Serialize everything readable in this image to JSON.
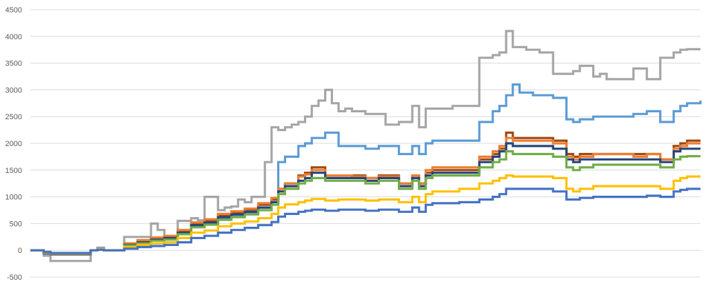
{
  "chart_data": {
    "type": "line",
    "title": "",
    "xlabel": "",
    "ylabel": "",
    "ylim": [
      -500,
      4500
    ],
    "yticks": [
      -500,
      0,
      500,
      1000,
      1500,
      2000,
      2500,
      3000,
      3500,
      4000,
      4500
    ],
    "ytick_labels": [
      "-500",
      "0",
      "500",
      "1000",
      "1500",
      "2000",
      "2500",
      "3000",
      "3500",
      "4000",
      "4500"
    ],
    "xlim": [
      0,
      100
    ],
    "grid": true,
    "legend": "none",
    "series": [
      {
        "color": "#a5a5a5",
        "x": [
          0,
          2,
          3,
          6,
          9,
          10,
          11,
          12,
          13,
          14,
          15,
          18,
          19,
          20,
          21,
          22,
          23,
          24,
          25,
          26,
          28,
          29,
          30,
          31,
          32,
          33,
          34,
          35,
          36,
          37,
          38,
          39,
          40,
          41,
          42,
          43,
          44,
          45,
          46,
          47,
          48,
          49,
          50,
          51,
          52,
          53,
          55,
          57,
          58,
          59,
          60,
          61,
          62,
          63,
          64,
          67,
          69,
          70,
          71,
          72,
          73,
          74,
          75,
          76,
          78,
          80,
          81,
          82,
          84,
          85,
          86,
          88,
          90,
          92,
          94,
          96,
          97,
          98,
          100
        ],
        "y": [
          0,
          -100,
          -200,
          -200,
          0,
          50,
          0,
          0,
          0,
          250,
          250,
          500,
          380,
          250,
          250,
          550,
          550,
          600,
          560,
          1000,
          750,
          800,
          820,
          950,
          900,
          1000,
          1000,
          1650,
          2300,
          2250,
          2300,
          2350,
          2400,
          2500,
          2700,
          2800,
          3000,
          2750,
          2600,
          2650,
          2600,
          2600,
          2550,
          2550,
          2550,
          2350,
          2400,
          2700,
          2300,
          2650,
          2650,
          2650,
          2650,
          2700,
          2700,
          3600,
          3650,
          3700,
          4100,
          3800,
          3800,
          3750,
          3750,
          3700,
          3300,
          3300,
          3350,
          3450,
          3250,
          3300,
          3200,
          3200,
          3400,
          3200,
          3600,
          3700,
          3750,
          3760,
          3760
        ]
      },
      {
        "color": "#5b9bd5",
        "x": [
          0,
          2,
          3,
          6,
          9,
          10,
          11,
          12,
          13,
          14,
          16,
          18,
          20,
          22,
          24,
          26,
          28,
          30,
          32,
          34,
          36,
          37,
          38,
          40,
          41,
          42,
          44,
          46,
          47,
          48,
          50,
          52,
          53,
          55,
          57,
          58,
          59,
          60,
          62,
          64,
          67,
          69,
          70,
          71,
          72,
          73,
          74,
          75,
          77,
          78,
          80,
          81,
          82,
          84,
          86,
          88,
          90,
          92,
          94,
          96,
          97,
          98,
          100
        ],
        "y": [
          0,
          -60,
          -80,
          -80,
          0,
          30,
          0,
          0,
          0,
          100,
          150,
          200,
          220,
          300,
          450,
          500,
          600,
          650,
          700,
          800,
          950,
          1650,
          1750,
          1950,
          2000,
          2100,
          2200,
          1950,
          1950,
          1950,
          1900,
          1950,
          1950,
          1800,
          1950,
          1800,
          2000,
          2050,
          2050,
          2050,
          2400,
          2600,
          2700,
          2900,
          3100,
          2950,
          2950,
          2900,
          2900,
          2850,
          2450,
          2400,
          2450,
          2500,
          2500,
          2500,
          2550,
          2600,
          2400,
          2600,
          2700,
          2750,
          2800
        ]
      },
      {
        "color": "#9e480e",
        "x": [
          0,
          2,
          3,
          6,
          9,
          10,
          11,
          12,
          13,
          14,
          16,
          18,
          20,
          22,
          24,
          26,
          28,
          30,
          32,
          34,
          36,
          37,
          38,
          40,
          41,
          42,
          44,
          46,
          48,
          50,
          52,
          53,
          55,
          57,
          58,
          59,
          60,
          62,
          64,
          67,
          69,
          70,
          71,
          72,
          73,
          74,
          76,
          78,
          80,
          81,
          82,
          84,
          86,
          88,
          90,
          92,
          94,
          96,
          97,
          98,
          100
        ],
        "y": [
          0,
          -50,
          -70,
          -70,
          0,
          20,
          0,
          0,
          0,
          120,
          180,
          220,
          250,
          350,
          500,
          550,
          650,
          700,
          760,
          850,
          950,
          1150,
          1250,
          1400,
          1450,
          1550,
          1400,
          1400,
          1400,
          1350,
          1400,
          1400,
          1250,
          1400,
          1250,
          1450,
          1500,
          1500,
          1500,
          1700,
          1800,
          1900,
          2200,
          2100,
          2100,
          2100,
          2100,
          2050,
          1800,
          1750,
          1800,
          1800,
          1800,
          1800,
          1800,
          1800,
          1700,
          1950,
          2000,
          2050,
          2050
        ]
      },
      {
        "color": "#ed7d31",
        "x": [
          0,
          2,
          3,
          6,
          9,
          10,
          11,
          12,
          13,
          14,
          16,
          18,
          20,
          22,
          24,
          26,
          28,
          30,
          32,
          34,
          36,
          37,
          38,
          40,
          41,
          42,
          44,
          46,
          48,
          50,
          52,
          53,
          55,
          57,
          58,
          59,
          60,
          62,
          64,
          67,
          69,
          70,
          71,
          72,
          73,
          74,
          76,
          78,
          80,
          81,
          82,
          84,
          86,
          88,
          90,
          92,
          94,
          96,
          97,
          98,
          100
        ],
        "y": [
          0,
          -50,
          -70,
          -70,
          0,
          20,
          0,
          0,
          0,
          130,
          190,
          240,
          270,
          380,
          520,
          580,
          680,
          730,
          780,
          880,
          980,
          1150,
          1250,
          1380,
          1420,
          1500,
          1400,
          1400,
          1380,
          1350,
          1380,
          1380,
          1250,
          1400,
          1250,
          1500,
          1550,
          1550,
          1550,
          1750,
          1850,
          1950,
          2100,
          2050,
          2050,
          2050,
          2050,
          2000,
          1750,
          1700,
          1750,
          1800,
          1800,
          1800,
          1750,
          1800,
          1700,
          1900,
          1950,
          2000,
          2000
        ]
      },
      {
        "color": "#264478",
        "x": [
          0,
          2,
          3,
          6,
          9,
          10,
          11,
          12,
          13,
          14,
          16,
          18,
          20,
          22,
          24,
          26,
          28,
          30,
          32,
          34,
          36,
          37,
          38,
          40,
          41,
          42,
          44,
          46,
          48,
          50,
          52,
          53,
          55,
          57,
          58,
          59,
          60,
          62,
          64,
          67,
          69,
          70,
          71,
          72,
          73,
          74,
          76,
          78,
          80,
          81,
          82,
          84,
          86,
          88,
          90,
          92,
          94,
          96,
          97,
          98,
          100
        ],
        "y": [
          0,
          -50,
          -70,
          -70,
          0,
          20,
          0,
          0,
          0,
          100,
          150,
          200,
          230,
          330,
          470,
          520,
          620,
          670,
          720,
          800,
          900,
          1100,
          1200,
          1300,
          1350,
          1450,
          1350,
          1350,
          1350,
          1300,
          1350,
          1350,
          1200,
          1350,
          1200,
          1400,
          1450,
          1450,
          1450,
          1650,
          1750,
          1850,
          2000,
          1950,
          1950,
          1950,
          1950,
          1900,
          1700,
          1650,
          1700,
          1700,
          1700,
          1700,
          1700,
          1700,
          1650,
          1850,
          1900,
          1900,
          1900
        ]
      },
      {
        "color": "#70ad47",
        "x": [
          0,
          2,
          3,
          6,
          9,
          10,
          11,
          12,
          13,
          14,
          16,
          18,
          20,
          22,
          24,
          26,
          28,
          30,
          32,
          34,
          36,
          37,
          38,
          40,
          41,
          42,
          44,
          46,
          48,
          50,
          52,
          53,
          55,
          57,
          58,
          59,
          60,
          62,
          64,
          67,
          69,
          70,
          71,
          72,
          73,
          74,
          76,
          78,
          80,
          81,
          82,
          84,
          86,
          88,
          90,
          92,
          94,
          96,
          97,
          98,
          100
        ],
        "y": [
          0,
          -40,
          -60,
          -60,
          0,
          20,
          0,
          0,
          0,
          90,
          130,
          180,
          200,
          300,
          430,
          480,
          570,
          620,
          670,
          750,
          850,
          1050,
          1150,
          1250,
          1300,
          1350,
          1300,
          1300,
          1300,
          1250,
          1300,
          1300,
          1150,
          1300,
          1150,
          1350,
          1400,
          1400,
          1400,
          1550,
          1650,
          1700,
          1850,
          1800,
          1800,
          1800,
          1800,
          1750,
          1550,
          1500,
          1550,
          1600,
          1600,
          1600,
          1600,
          1600,
          1550,
          1700,
          1750,
          1760,
          1760
        ]
      },
      {
        "color": "#ffc000",
        "x": [
          0,
          2,
          3,
          6,
          9,
          10,
          11,
          12,
          13,
          14,
          16,
          18,
          20,
          22,
          24,
          26,
          28,
          30,
          32,
          34,
          36,
          37,
          38,
          40,
          41,
          42,
          44,
          46,
          48,
          50,
          52,
          53,
          55,
          57,
          58,
          59,
          60,
          62,
          64,
          67,
          69,
          70,
          71,
          72,
          73,
          74,
          76,
          78,
          80,
          81,
          82,
          84,
          86,
          88,
          90,
          92,
          94,
          96,
          97,
          98,
          100
        ],
        "y": [
          0,
          -40,
          -60,
          -60,
          0,
          20,
          0,
          0,
          0,
          60,
          100,
          130,
          150,
          230,
          330,
          370,
          450,
          500,
          540,
          600,
          680,
          800,
          860,
          900,
          930,
          960,
          930,
          950,
          950,
          930,
          950,
          950,
          900,
          1000,
          900,
          1050,
          1100,
          1100,
          1150,
          1250,
          1300,
          1350,
          1400,
          1380,
          1380,
          1380,
          1380,
          1350,
          1150,
          1100,
          1150,
          1200,
          1200,
          1200,
          1200,
          1200,
          1150,
          1300,
          1350,
          1380,
          1380
        ]
      },
      {
        "color": "#4472c4",
        "x": [
          0,
          2,
          3,
          6,
          9,
          10,
          11,
          12,
          13,
          14,
          16,
          18,
          20,
          22,
          24,
          26,
          28,
          30,
          32,
          34,
          36,
          37,
          38,
          40,
          41,
          42,
          44,
          46,
          48,
          50,
          52,
          53,
          55,
          57,
          58,
          59,
          60,
          62,
          64,
          67,
          69,
          70,
          71,
          72,
          73,
          74,
          76,
          78,
          80,
          81,
          82,
          84,
          86,
          88,
          90,
          92,
          94,
          96,
          97,
          98,
          100
        ],
        "y": [
          0,
          -30,
          -50,
          -50,
          0,
          10,
          0,
          0,
          0,
          30,
          60,
          80,
          100,
          150,
          230,
          270,
          330,
          380,
          420,
          470,
          530,
          630,
          680,
          720,
          740,
          760,
          740,
          760,
          760,
          740,
          760,
          760,
          720,
          800,
          720,
          850,
          880,
          880,
          900,
          950,
          1000,
          1050,
          1150,
          1150,
          1150,
          1150,
          1150,
          1100,
          950,
          950,
          980,
          1000,
          1000,
          1000,
          1000,
          1020,
          1000,
          1100,
          1130,
          1150,
          1150
        ]
      }
    ]
  }
}
